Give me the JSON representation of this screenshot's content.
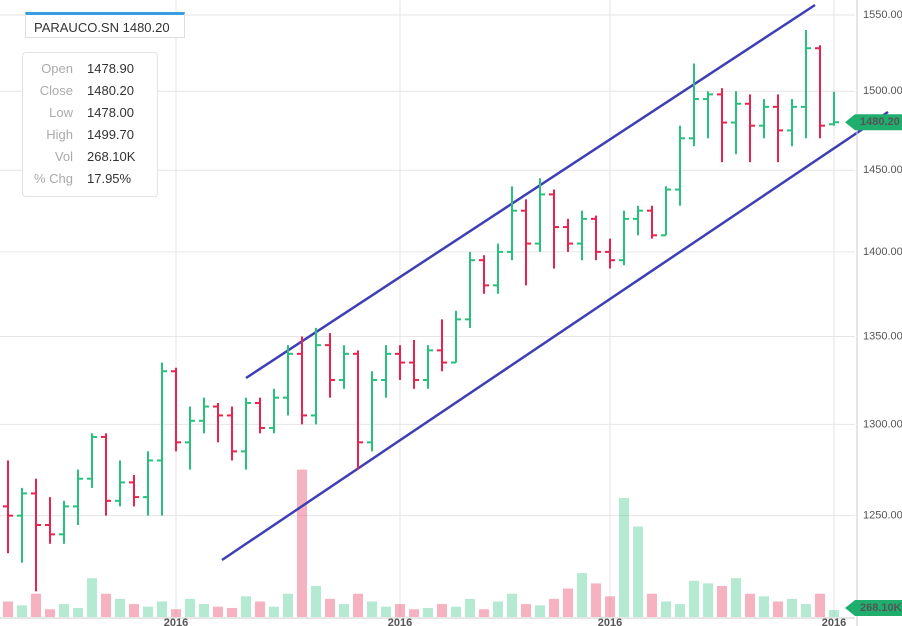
{
  "header": "PARAUCO.SN 1480.20",
  "info": [
    [
      "Open",
      "1478.90"
    ],
    [
      "Close",
      "1480.20"
    ],
    [
      "Low",
      "1478.00"
    ],
    [
      "High",
      "1499.70"
    ],
    [
      "Vol",
      "268.10K"
    ],
    [
      "% Chg",
      "17.95%"
    ]
  ],
  "chart_data": {
    "type": "ohlc",
    "log_scale": true,
    "grid": true,
    "up_color": "#27c07d",
    "down_color": "#e8234d",
    "ylim": [
      1205,
      1560
    ],
    "yticks": [
      {
        "value": 1250,
        "label": "1250.00"
      },
      {
        "value": 1300,
        "label": "1300.00"
      },
      {
        "value": 1350,
        "label": "1350.00"
      },
      {
        "value": 1400,
        "label": "1400.00"
      },
      {
        "value": 1450,
        "label": "1450.00"
      },
      {
        "value": 1500,
        "label": "1500.00"
      },
      {
        "value": 1550,
        "label": "1550.00"
      }
    ],
    "volume_lim": [
      0,
      5800
    ],
    "x_labels": [
      {
        "index": 12,
        "label": "2016"
      },
      {
        "index": 28,
        "label": "2016"
      },
      {
        "index": 43,
        "label": "2016"
      },
      {
        "index": 59,
        "label": "2016"
      }
    ],
    "open": [
      1255,
      1250,
      1262,
      1245,
      1240,
      1255,
      1270,
      1293,
      1258,
      1268,
      1260,
      1280,
      1330,
      1290,
      1302,
      1310,
      1305,
      1285,
      1312,
      1298,
      1315,
      1340,
      1305,
      1345,
      1325,
      1340,
      1290,
      1325,
      1340,
      1335,
      1325,
      1342,
      1335,
      1360,
      1395,
      1380,
      1400,
      1425,
      1405,
      1435,
      1415,
      1405,
      1420,
      1400,
      1395,
      1420,
      1425,
      1410,
      1438,
      1470,
      1495,
      1498,
      1480,
      1492,
      1478,
      1490,
      1475,
      1490,
      1528,
      1478.9
    ],
    "high": [
      1280,
      1265,
      1270,
      1260,
      1258,
      1275,
      1295,
      1295,
      1280,
      1272,
      1285,
      1335,
      1332,
      1310,
      1315,
      1312,
      1310,
      1315,
      1315,
      1320,
      1345,
      1350,
      1355,
      1352,
      1345,
      1342,
      1330,
      1345,
      1345,
      1348,
      1345,
      1360,
      1365,
      1400,
      1398,
      1405,
      1440,
      1432,
      1445,
      1438,
      1420,
      1425,
      1422,
      1408,
      1425,
      1428,
      1428,
      1440,
      1478,
      1518,
      1500,
      1502,
      1500,
      1498,
      1495,
      1498,
      1495,
      1540,
      1530,
      1499.7
    ],
    "low": [
      1230,
      1225,
      1210,
      1235,
      1235,
      1245,
      1265,
      1250,
      1255,
      1255,
      1250,
      1250,
      1285,
      1275,
      1295,
      1290,
      1280,
      1275,
      1295,
      1295,
      1305,
      1300,
      1300,
      1315,
      1320,
      1275,
      1285,
      1315,
      1325,
      1320,
      1320,
      1330,
      1335,
      1355,
      1375,
      1375,
      1395,
      1380,
      1400,
      1390,
      1400,
      1395,
      1395,
      1390,
      1392,
      1410,
      1408,
      1410,
      1428,
      1465,
      1470,
      1455,
      1460,
      1455,
      1470,
      1455,
      1465,
      1470,
      1470,
      1478
    ],
    "close": [
      1250,
      1262,
      1245,
      1240,
      1255,
      1270,
      1293,
      1258,
      1268,
      1260,
      1280,
      1330,
      1290,
      1302,
      1310,
      1305,
      1285,
      1312,
      1298,
      1315,
      1340,
      1305,
      1345,
      1325,
      1340,
      1290,
      1325,
      1340,
      1335,
      1325,
      1342,
      1335,
      1360,
      1395,
      1380,
      1400,
      1425,
      1405,
      1435,
      1415,
      1405,
      1420,
      1400,
      1395,
      1420,
      1425,
      1410,
      1438,
      1470,
      1495,
      1498,
      1480,
      1492,
      1478,
      1490,
      1475,
      1490,
      1528,
      1478,
      1480.2
    ],
    "volume": [
      600,
      450,
      900,
      300,
      500,
      350,
      1500,
      900,
      700,
      500,
      400,
      600,
      300,
      700,
      500,
      400,
      350,
      800,
      600,
      400,
      900,
      5700,
      1200,
      700,
      500,
      900,
      600,
      400,
      500,
      300,
      350,
      500,
      400,
      700,
      300,
      600,
      900,
      500,
      450,
      700,
      1100,
      1700,
      1300,
      800,
      4600,
      3500,
      900,
      600,
      500,
      1400,
      1300,
      1200,
      1500,
      900,
      800,
      600,
      700,
      500,
      900,
      268.1
    ],
    "last_tags": {
      "price": "1480.20",
      "volume": "268.10K"
    }
  }
}
